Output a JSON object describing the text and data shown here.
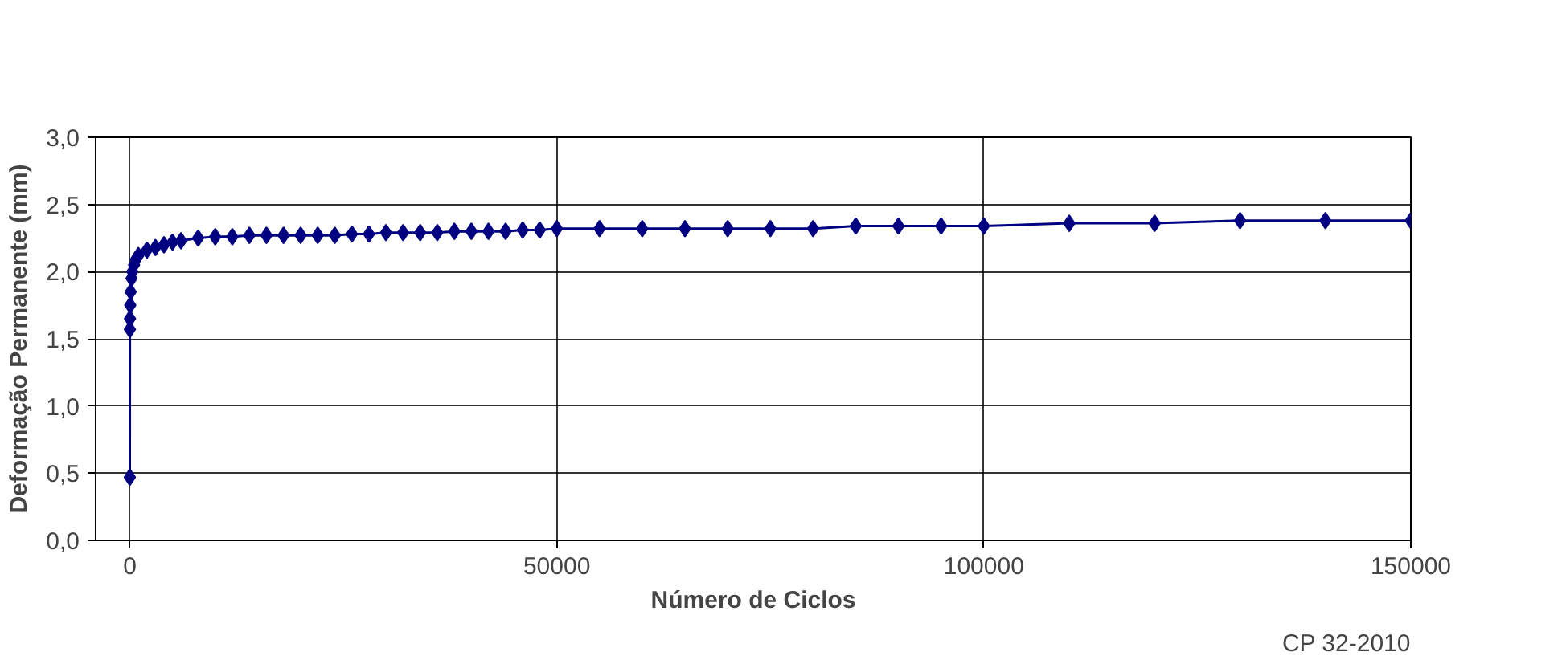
{
  "chart_data": {
    "type": "line",
    "xlabel": "Número de Ciclos",
    "ylabel": "Deformação Permanente (mm)",
    "annotations": [
      "CP 32-2010"
    ],
    "x": [
      1,
      10,
      20,
      50,
      100,
      200,
      300,
      500,
      700,
      1000,
      2000,
      3000,
      4000,
      5000,
      6000,
      8000,
      10000,
      12000,
      14000,
      16000,
      18000,
      20000,
      22000,
      24000,
      26000,
      28000,
      30000,
      32000,
      34000,
      36000,
      38000,
      40000,
      42000,
      44000,
      46000,
      48000,
      50000,
      55000,
      60000,
      65000,
      70000,
      75000,
      80000,
      85000,
      90000,
      95000,
      100000,
      110000,
      120000,
      130000,
      140000,
      150000
    ],
    "series": [
      {
        "color": "#000080",
        "values": [
          0.47,
          1.57,
          1.65,
          1.75,
          1.85,
          1.95,
          2.0,
          2.05,
          2.09,
          2.12,
          2.16,
          2.18,
          2.2,
          2.22,
          2.23,
          2.25,
          2.26,
          2.26,
          2.27,
          2.27,
          2.27,
          2.27,
          2.27,
          2.27,
          2.28,
          2.28,
          2.29,
          2.29,
          2.29,
          2.29,
          2.3,
          2.3,
          2.3,
          2.3,
          2.31,
          2.31,
          2.32,
          2.32,
          2.32,
          2.32,
          2.32,
          2.32,
          2.32,
          2.34,
          2.34,
          2.34,
          2.34,
          2.36,
          2.36,
          2.38,
          2.38,
          2.38
        ]
      }
    ],
    "xlim": [
      -4000,
      150000
    ],
    "ylim": [
      0,
      3
    ],
    "xticks": [
      0,
      50000,
      100000,
      150000
    ],
    "yticks": [
      {
        "value": 0,
        "label": "0,0"
      },
      {
        "value": 0.5,
        "label": "0,5"
      },
      {
        "value": 1,
        "label": "1,0"
      },
      {
        "value": 1.5,
        "label": "1,5"
      },
      {
        "value": 2,
        "label": "2,0"
      },
      {
        "value": 2.5,
        "label": "2,5"
      },
      {
        "value": 3,
        "label": "3,0"
      }
    ],
    "grid": true,
    "marker": "diamond",
    "line_style": "solid"
  }
}
